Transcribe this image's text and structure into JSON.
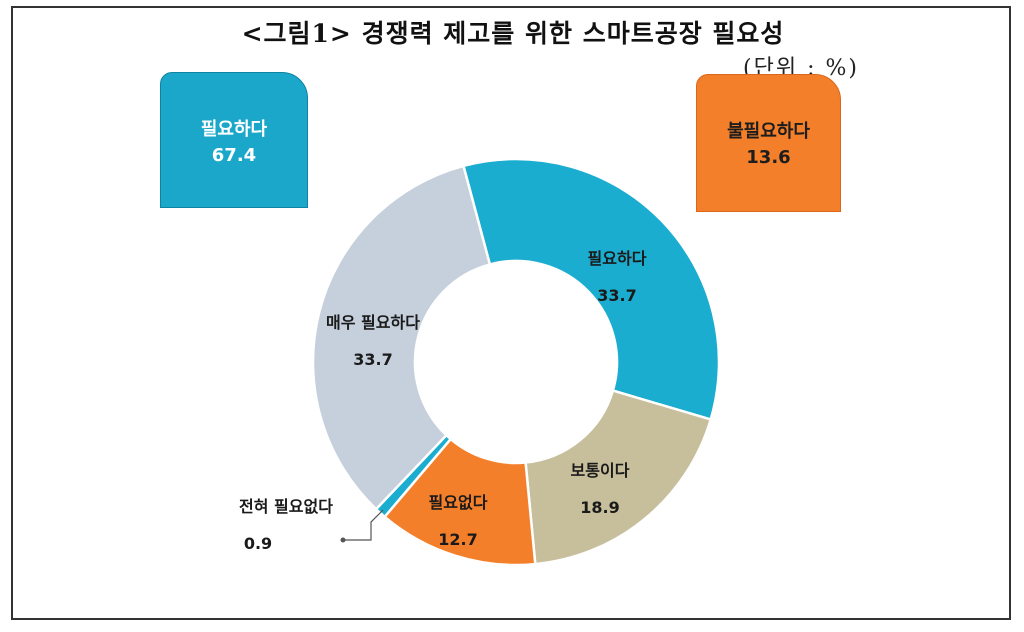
{
  "title": "<그림1> 경쟁력 제고를 위한 스마트공장 필요성",
  "unit": "(단위 : %)",
  "summary": {
    "need": {
      "label": "필요하다",
      "value": "67.4",
      "color": "#1aa7c9"
    },
    "no_need": {
      "label": "불필요하다",
      "value": "13.6",
      "color": "#f47f2a"
    }
  },
  "chart_data": {
    "type": "pie",
    "variant": "donut",
    "title": "<그림1> 경쟁력 제고를 위한 스마트공장 필요성",
    "unit": "%",
    "slices": [
      {
        "label": "필요하다",
        "value": 33.7,
        "value_label": "33.7",
        "color": "#1aadcf"
      },
      {
        "label": "보통이다",
        "value": 18.9,
        "value_label": "18.9",
        "color": "#c7bf9c"
      },
      {
        "label": "필요없다",
        "value": 12.7,
        "value_label": "12.7",
        "color": "#f47f2a"
      },
      {
        "label": "전혀 필요없다",
        "value": 0.9,
        "value_label": "0.9",
        "color": "#1aadcf"
      },
      {
        "label": "매우 필요하다",
        "value": 33.7,
        "value_label": "33.7",
        "color": "#c5d0dc"
      }
    ]
  }
}
